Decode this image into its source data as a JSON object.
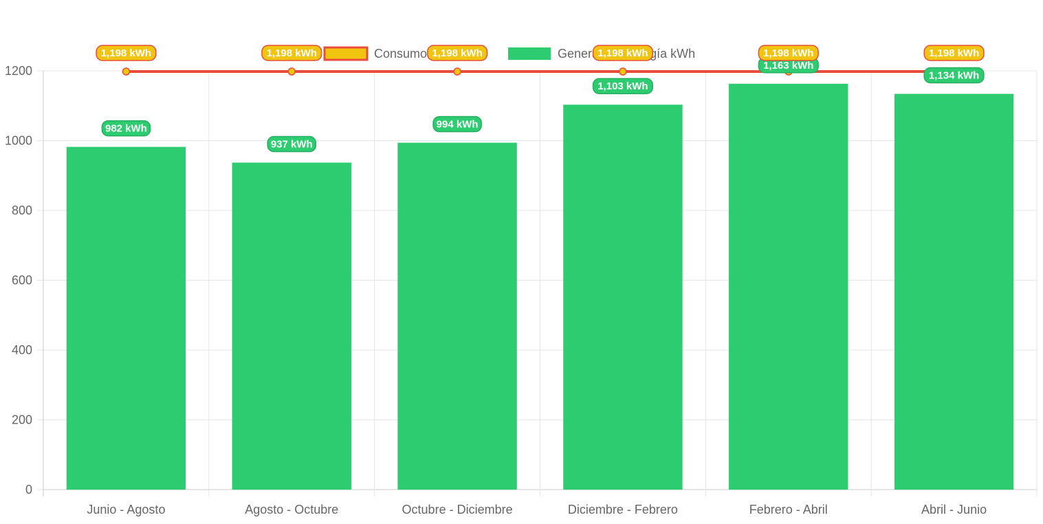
{
  "chart_data": {
    "type": "bar",
    "categories": [
      "Junio - Agosto",
      "Agosto - Octubre",
      "Octubre - Diciembre",
      "Diciembre - Febrero",
      "Febrero - Abril",
      "Abril - Junio"
    ],
    "series": [
      {
        "name": "Consumo kWh",
        "type": "line",
        "values": [
          1198,
          1198,
          1198,
          1198,
          1198,
          1198
        ],
        "labels": [
          "1,198 kWh",
          "1,198 kWh",
          "1,198 kWh",
          "1,198 kWh",
          "1,198 kWh",
          "1,198 kWh"
        ],
        "color": "#e74c3c",
        "point_color": "#f1c40f",
        "label_bg": "#f1c40f",
        "label_border": "#e74c3c"
      },
      {
        "name": "Generación energía kWh",
        "type": "bar",
        "values": [
          982,
          937,
          994,
          1103,
          1163,
          1134
        ],
        "labels": [
          "982 kWh",
          "937 kWh",
          "994 kWh",
          "1,103 kWh",
          "1,163 kWh",
          "1,134 kWh"
        ],
        "color": "#2ecc71",
        "label_bg": "#2ecc71",
        "label_border": "#27ae60"
      }
    ],
    "ylim": [
      0,
      1200
    ],
    "y_ticks": [
      "0",
      "200",
      "400",
      "600",
      "800",
      "1000",
      "1200"
    ],
    "grid": true,
    "legend": "top-center",
    "title": "",
    "xlabel": "",
    "ylabel": ""
  },
  "colors": {
    "grid": "#e5e5e5",
    "axis": "#c8c8c8",
    "tick_text": "#666666"
  }
}
